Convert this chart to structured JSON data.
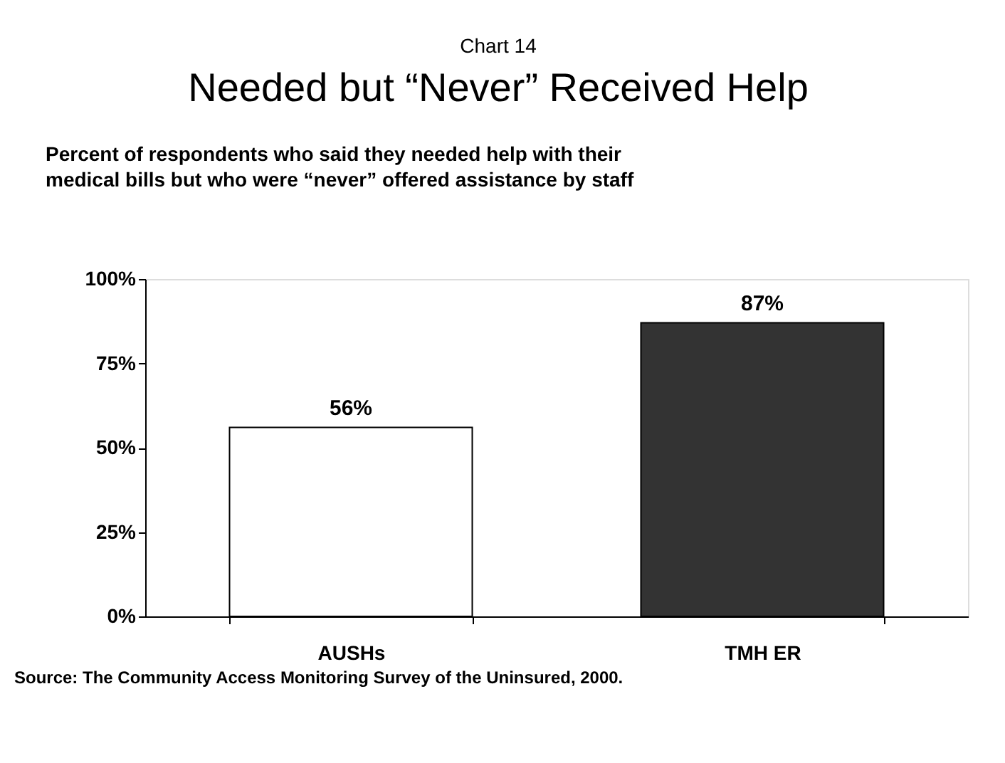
{
  "chart_data": {
    "type": "bar",
    "title": "Needed but “Never” Received Help",
    "subtitle": [
      "Percent of respondents who said they needed help with their",
      "medical bills but who were “never” offered assistance by staff"
    ],
    "annotations": [
      "Chart 14",
      "Source: The Community Access Monitoring Survey of the Uninsured,  2000."
    ],
    "categories": [
      "AUSHs",
      "TMH ER"
    ],
    "values": [
      56,
      87
    ],
    "colors": [
      "#ffffff",
      "#333333"
    ],
    "value_labels": [
      "56%",
      "87%"
    ],
    "ylim": [
      0,
      100
    ],
    "yticks": [
      {
        "value": 0,
        "label": "0%"
      },
      {
        "value": 25,
        "label": "25%"
      },
      {
        "value": 50,
        "label": "50%"
      },
      {
        "value": 75,
        "label": "75%"
      },
      {
        "value": 100,
        "label": "100%"
      }
    ],
    "grid": false
  }
}
